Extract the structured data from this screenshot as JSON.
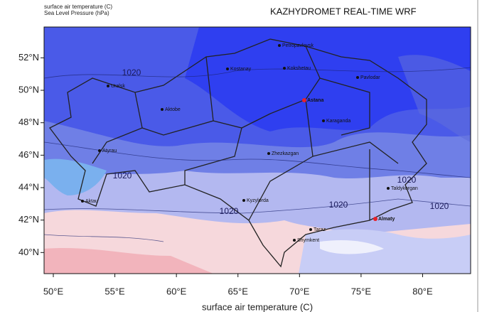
{
  "header": {
    "subtitle_line1": "surface air temperature  (C)",
    "subtitle_line2": "Sea Level Pressure  (hPa)",
    "title": "KAZHYDROMET REAL-TIME WRF"
  },
  "map": {
    "xlim": [
      49.25,
      83.9
    ],
    "ylim": [
      38.7,
      53.9
    ],
    "xticks": [
      {
        "value": 50,
        "label": "50°E"
      },
      {
        "value": 55,
        "label": "55°E"
      },
      {
        "value": 60,
        "label": "60°E"
      },
      {
        "value": 65,
        "label": "65°E"
      },
      {
        "value": 70,
        "label": "70°E"
      },
      {
        "value": 75,
        "label": "75°E"
      },
      {
        "value": 80,
        "label": "80°E"
      }
    ],
    "yticks": [
      {
        "value": 40,
        "label": "40°N"
      },
      {
        "value": 42,
        "label": "42°N"
      },
      {
        "value": 44,
        "label": "44°N"
      },
      {
        "value": 46,
        "label": "46°N"
      },
      {
        "value": 48,
        "label": "48°N"
      },
      {
        "value": 50,
        "label": "50°N"
      },
      {
        "value": 52,
        "label": "52°N"
      }
    ],
    "cities": [
      "Petropavlovsk",
      "Kostanay",
      "Kokshetau",
      "Uralsk",
      "Aktobe",
      "Astana",
      "Pavlodar",
      "Karaganda",
      "Atyrau",
      "Zhezkazgan",
      "Aktau",
      "Kyzylorda",
      "Taldykorgan",
      "Almaty",
      "Taraz",
      "Shymkent"
    ],
    "isobar_labels": [
      "1020",
      "1020",
      "1020",
      "1020",
      "1020",
      "1020"
    ]
  },
  "footer": {
    "x_label": "surface air temperature  (C)"
  }
}
